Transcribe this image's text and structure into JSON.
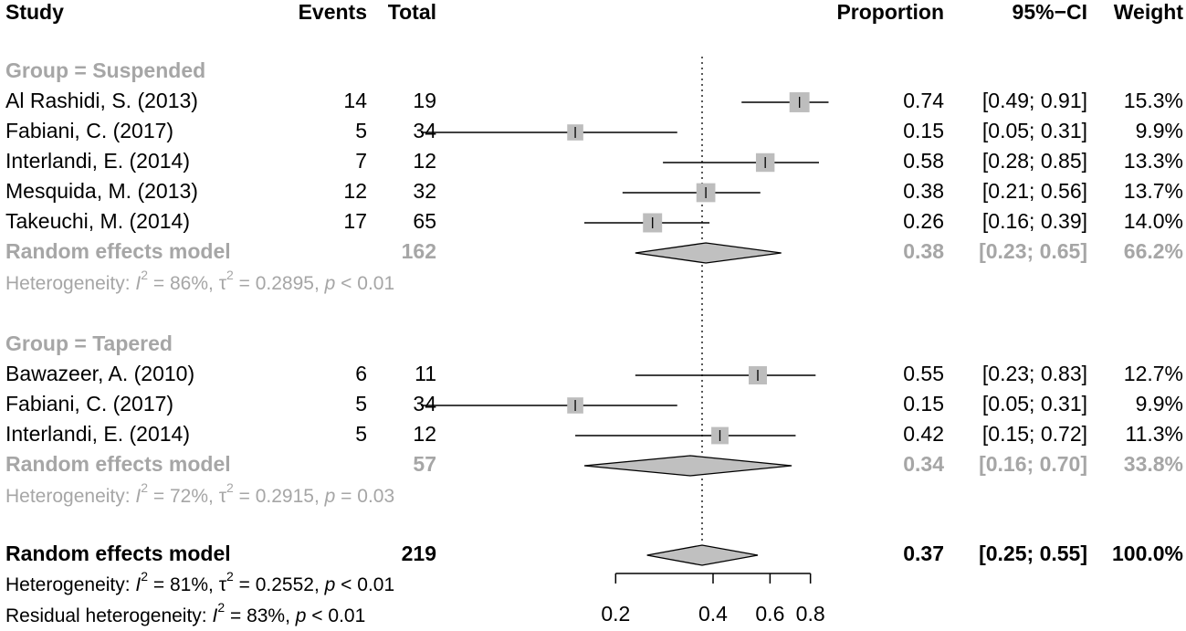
{
  "chart_data": {
    "type": "forest",
    "headers": {
      "study": "Study",
      "events": "Events",
      "total": "Total",
      "proportion": "Proportion",
      "ci": "95%−CI",
      "weight": "Weight"
    },
    "reference_line": 0.37,
    "axis": {
      "min": 0.2,
      "max": 0.8,
      "ticks": [
        0.2,
        0.4,
        0.6,
        0.8
      ],
      "tick_labels": [
        "0.2",
        "0.4",
        "0.6",
        "0.8"
      ]
    },
    "groups": [
      {
        "label": "Group = Suspended",
        "studies": [
          {
            "study": "Al Rashidi, S. (2013)",
            "events": "14",
            "total": "19",
            "prop": 0.74,
            "lower": 0.49,
            "upper": 0.91,
            "prop_text": "0.74",
            "ci_text": "[0.49; 0.91]",
            "weight": "15.3%",
            "w": 15.3
          },
          {
            "study": "Fabiani, C. (2017)",
            "events": "5",
            "total": "34",
            "prop": 0.15,
            "lower": 0.05,
            "upper": 0.31,
            "prop_text": "0.15",
            "ci_text": "[0.05; 0.31]",
            "weight": "9.9%",
            "w": 9.9
          },
          {
            "study": "Interlandi, E. (2014)",
            "events": "7",
            "total": "12",
            "prop": 0.58,
            "lower": 0.28,
            "upper": 0.85,
            "prop_text": "0.58",
            "ci_text": "[0.28; 0.85]",
            "weight": "13.3%",
            "w": 13.3
          },
          {
            "study": "Mesquida, M. (2013)",
            "events": "12",
            "total": "32",
            "prop": 0.38,
            "lower": 0.21,
            "upper": 0.56,
            "prop_text": "0.38",
            "ci_text": "[0.21; 0.56]",
            "weight": "13.7%",
            "w": 13.7
          },
          {
            "study": "Takeuchi, M. (2014)",
            "events": "17",
            "total": "65",
            "prop": 0.26,
            "lower": 0.16,
            "upper": 0.39,
            "prop_text": "0.26",
            "ci_text": "[0.16; 0.39]",
            "weight": "14.0%",
            "w": 14.0
          }
        ],
        "summary": {
          "label": "Random effects model",
          "total": "162",
          "prop": 0.38,
          "lower": 0.23,
          "upper": 0.65,
          "prop_text": "0.38",
          "ci_text": "[0.23; 0.65]",
          "weight": "66.2%"
        },
        "heterogeneity": {
          "i2": "86%",
          "tau2": "0.2895",
          "p_op": "<",
          "p": "0.01"
        }
      },
      {
        "label": "Group = Tapered",
        "studies": [
          {
            "study": "Bawazeer, A. (2010)",
            "events": "6",
            "total": "11",
            "prop": 0.55,
            "lower": 0.23,
            "upper": 0.83,
            "prop_text": "0.55",
            "ci_text": "[0.23; 0.83]",
            "weight": "12.7%",
            "w": 12.7
          },
          {
            "study": "Fabiani, C. (2017)",
            "events": "5",
            "total": "34",
            "prop": 0.15,
            "lower": 0.05,
            "upper": 0.31,
            "prop_text": "0.15",
            "ci_text": "[0.05; 0.31]",
            "weight": "9.9%",
            "w": 9.9
          },
          {
            "study": "Interlandi, E. (2014)",
            "events": "5",
            "total": "12",
            "prop": 0.42,
            "lower": 0.15,
            "upper": 0.72,
            "prop_text": "0.42",
            "ci_text": "[0.15; 0.72]",
            "weight": "11.3%",
            "w": 11.3
          }
        ],
        "summary": {
          "label": "Random effects model",
          "total": "57",
          "prop": 0.34,
          "lower": 0.16,
          "upper": 0.7,
          "prop_text": "0.34",
          "ci_text": "[0.16; 0.70]",
          "weight": "33.8%"
        },
        "heterogeneity": {
          "i2": "72%",
          "tau2": "0.2915",
          "p_op": "=",
          "p": "0.03"
        }
      }
    ],
    "overall": {
      "label": "Random effects model",
      "total": "219",
      "prop": 0.37,
      "lower": 0.25,
      "upper": 0.55,
      "prop_text": "0.37",
      "ci_text": "[0.25; 0.55]",
      "weight": "100.0%",
      "heterogeneity": {
        "i2": "81%",
        "tau2": "0.2552",
        "p_op": "<",
        "p": "0.01"
      },
      "residual": {
        "i2": "83%",
        "p_op": "<",
        "p": "0.01"
      }
    },
    "labels": {
      "heterogeneity": "Heterogeneity: ",
      "residual": "Residual heterogeneity: ",
      "i": "I",
      "sup2": "2",
      "tau": "τ",
      "p": "p"
    }
  }
}
